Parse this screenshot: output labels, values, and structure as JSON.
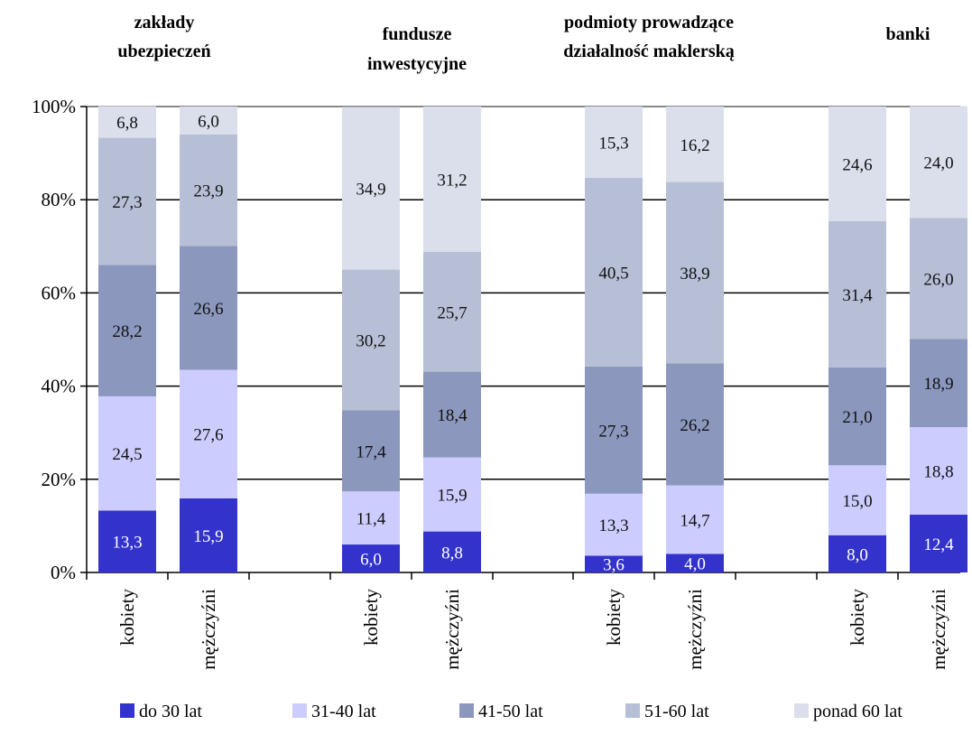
{
  "chart_data": {
    "type": "bar",
    "stacked": true,
    "groups": [
      {
        "title_lines": [
          "zakłady",
          "ubezpieczeń"
        ],
        "categories": [
          "kobiety",
          "mężczyźni"
        ]
      },
      {
        "title_lines": [
          "fundusze",
          "inwestycyjne"
        ],
        "categories": [
          "kobiety",
          "mężczyźni"
        ]
      },
      {
        "title_lines": [
          "podmioty prowadzące",
          "działalność maklerską"
        ],
        "categories": [
          "kobiety",
          "mężczyźni"
        ]
      },
      {
        "title_lines": [
          "banki"
        ],
        "categories": [
          "kobiety",
          "mężczyźni"
        ]
      }
    ],
    "series": [
      {
        "name": "do 30 lat",
        "color": "#3333cc",
        "values": [
          13.3,
          15.9,
          6.0,
          8.8,
          3.6,
          4.0,
          8.0,
          12.4
        ],
        "labels": [
          "13,3",
          "15,9",
          "6,0",
          "8,8",
          "3,6",
          "4,0",
          "8,0",
          "12,4"
        ]
      },
      {
        "name": "31-40 lat",
        "color": "#ccccff",
        "values": [
          24.5,
          27.6,
          11.4,
          15.9,
          13.3,
          14.7,
          15.0,
          18.8
        ],
        "labels": [
          "24,5",
          "27,6",
          "11,4",
          "15,9",
          "13,3",
          "14,7",
          "15,0",
          "18,8"
        ]
      },
      {
        "name": "41-50 lat",
        "color": "#8b97bd",
        "values": [
          28.2,
          26.6,
          17.4,
          18.4,
          27.3,
          26.2,
          21.0,
          18.9
        ],
        "labels": [
          "28,2",
          "26,6",
          "17,4",
          "18,4",
          "27,3",
          "26,2",
          "21,0",
          "18,9"
        ]
      },
      {
        "name": "51-60 lat",
        "color": "#b7bfd6",
        "values": [
          27.3,
          23.9,
          30.2,
          25.7,
          40.5,
          38.9,
          31.4,
          26.0
        ],
        "labels": [
          "27,3",
          "23,9",
          "30,2",
          "25,7",
          "40,5",
          "38,9",
          "31,4",
          "26,0"
        ]
      },
      {
        "name": "ponad 60 lat",
        "color": "#dadfeb",
        "values": [
          6.8,
          6.0,
          34.9,
          31.2,
          15.3,
          16.2,
          24.6,
          24.0
        ],
        "labels": [
          "6,8",
          "6,0",
          "34,9",
          "31,2",
          "15,3",
          "16,2",
          "24,6",
          "24,0"
        ]
      }
    ],
    "y_ticks": [
      "0%",
      "20%",
      "40%",
      "60%",
      "80%",
      "100%"
    ],
    "ylim": [
      0,
      100
    ],
    "grid": true,
    "legend_position": "bottom"
  }
}
